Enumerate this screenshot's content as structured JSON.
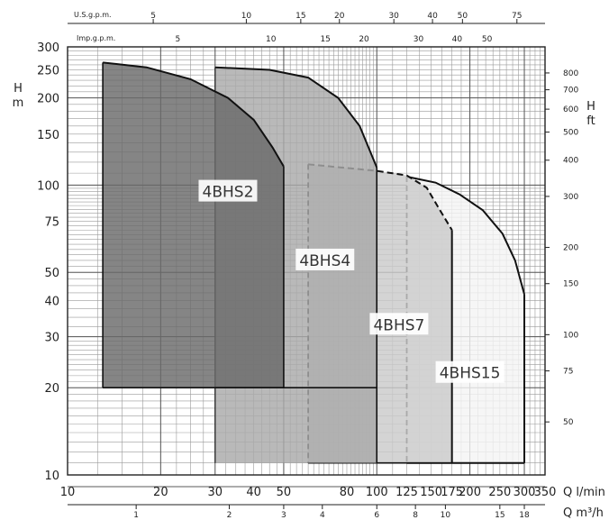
{
  "chart_data": {
    "type": "area",
    "title": "",
    "x_axis": {
      "scale": "log",
      "range": [
        10,
        350
      ],
      "label": "Q l/min",
      "ticks": [
        "10",
        "20",
        "30",
        "40",
        "50",
        "80",
        "100",
        "125",
        "150",
        "175",
        "200",
        "250",
        "300",
        "350"
      ]
    },
    "x_axis_m3h": {
      "label": "Q m³/h",
      "ticks": [
        "1",
        "2",
        "3",
        "4",
        "6",
        "8",
        "10",
        "15",
        "18"
      ]
    },
    "x_axis_usgpm": {
      "label": "U.S.g.p.m.",
      "ticks": [
        "5",
        "10",
        "15",
        "20",
        "30",
        "40",
        "50",
        "75"
      ]
    },
    "x_axis_impgpm": {
      "label": "Imp.g.p.m.",
      "ticks": [
        "5",
        "10",
        "15",
        "20",
        "30",
        "40",
        "50"
      ]
    },
    "y_axis": {
      "scale": "log",
      "range": [
        10,
        300
      ],
      "label_line1": "H",
      "label_line2": "m",
      "ticks": [
        "10",
        "20",
        "30",
        "40",
        "50",
        "75",
        "100",
        "150",
        "200",
        "250",
        "300"
      ]
    },
    "y_axis_ft": {
      "label_line1": "H",
      "label_line2": "ft",
      "ticks": [
        "50",
        "75",
        "100",
        "150",
        "200",
        "300",
        "400",
        "500",
        "600",
        "700",
        "800"
      ]
    },
    "series": [
      {
        "name": "4BHS2",
        "color": "#6a6a6a",
        "q_min": 13,
        "q_max": 50,
        "h_min": 20,
        "top_curve": [
          [
            13,
            265
          ],
          [
            18,
            255
          ],
          [
            25,
            232
          ],
          [
            33,
            200
          ],
          [
            40,
            168
          ],
          [
            46,
            135
          ],
          [
            50,
            116
          ]
        ]
      },
      {
        "name": "4BHS4",
        "color": "#a9a9a9",
        "q_min": 30,
        "q_max": 100,
        "h_min": 20,
        "h_min_ext": 11,
        "top_curve": [
          [
            30,
            255
          ],
          [
            45,
            250
          ],
          [
            60,
            235
          ],
          [
            75,
            200
          ],
          [
            88,
            160
          ],
          [
            100,
            115
          ]
        ]
      },
      {
        "name": "4BHS7",
        "color": "#cacaca",
        "q_min": 60,
        "q_max": 175,
        "h_min": 11,
        "top_curve": [
          [
            60,
            118
          ],
          [
            100,
            112
          ],
          [
            125,
            108
          ],
          [
            145,
            98
          ],
          [
            160,
            82
          ],
          [
            175,
            70
          ]
        ]
      },
      {
        "name": "4BHS15",
        "color": "#f4f4f4",
        "q_min": 125,
        "q_max": 300,
        "h_min": 11,
        "top_curve": [
          [
            125,
            107
          ],
          [
            155,
            102
          ],
          [
            185,
            93
          ],
          [
            220,
            82
          ],
          [
            255,
            68
          ],
          [
            280,
            55
          ],
          [
            300,
            42
          ]
        ]
      }
    ]
  }
}
